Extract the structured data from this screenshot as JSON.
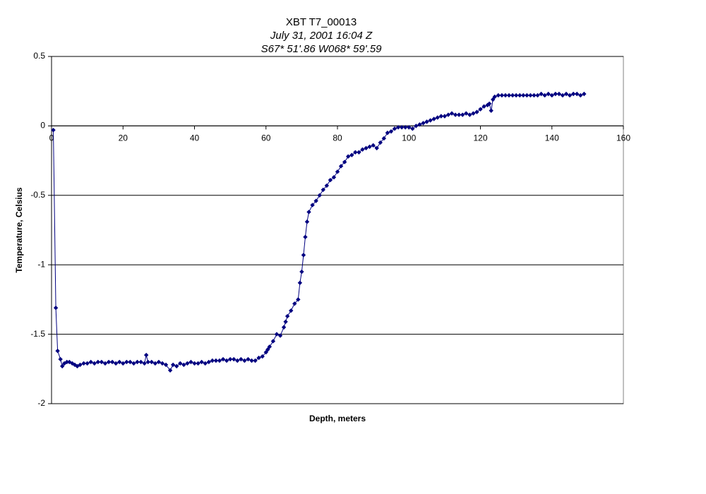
{
  "chart_data": {
    "type": "scatter",
    "title": "XBT T7_00013",
    "subtitle": "July 31, 2001  16:04 Z",
    "subtitle2": "S67* 51'.86  W068* 59'.59",
    "x_label": "Depth, meters",
    "y_label": "Temperature, Celsius",
    "color": "#000080",
    "grid": true,
    "xlim": [
      0,
      160
    ],
    "xticks": [
      0,
      20,
      40,
      60,
      80,
      100,
      120,
      140,
      160
    ],
    "ylim": [
      -2,
      0.5
    ],
    "yticks": [
      -2,
      -1.5,
      -1,
      -0.5,
      0,
      0.5
    ],
    "x": [
      0.5,
      1.2,
      1.7,
      2.5,
      3,
      3.6,
      4.3,
      5,
      5.8,
      6.5,
      7.2,
      8,
      9,
      10,
      11,
      12,
      13,
      14,
      15,
      16,
      17,
      18,
      19,
      20,
      21,
      22,
      23,
      24,
      25,
      26,
      26.5,
      27,
      28,
      29,
      30,
      31,
      32,
      33.2,
      34,
      35,
      36,
      37,
      38,
      39,
      40,
      41,
      42,
      43,
      44,
      45,
      46,
      47,
      48,
      49,
      50,
      51,
      52,
      53,
      54,
      55,
      56,
      57,
      58,
      59,
      60,
      60.5,
      61,
      62,
      63,
      64,
      65,
      65.5,
      66,
      67,
      68,
      69,
      69.5,
      70,
      70.5,
      71,
      71.5,
      72,
      73,
      74,
      75,
      76,
      77,
      78,
      79,
      80,
      81,
      82,
      83,
      84,
      85,
      86,
      87,
      88,
      89,
      90,
      91,
      92,
      93,
      94,
      95,
      96,
      97,
      98,
      99,
      100,
      101,
      102,
      103,
      104,
      105,
      106,
      107,
      108,
      109,
      110,
      111,
      112,
      113,
      114,
      115,
      116,
      117,
      118,
      119,
      120,
      121,
      122,
      122.5,
      123,
      123.5,
      124,
      125,
      126,
      127,
      128,
      129,
      130,
      131,
      132,
      133,
      134,
      135,
      136,
      137,
      138,
      139,
      140,
      141,
      142,
      143,
      144,
      145,
      146,
      147,
      148,
      149
    ],
    "y": [
      -0.03,
      -1.31,
      -1.62,
      -1.68,
      -1.73,
      -1.71,
      -1.7,
      -1.7,
      -1.71,
      -1.72,
      -1.73,
      -1.72,
      -1.71,
      -1.71,
      -1.7,
      -1.71,
      -1.7,
      -1.7,
      -1.71,
      -1.7,
      -1.7,
      -1.71,
      -1.7,
      -1.71,
      -1.7,
      -1.7,
      -1.71,
      -1.7,
      -1.7,
      -1.71,
      -1.65,
      -1.7,
      -1.7,
      -1.71,
      -1.7,
      -1.71,
      -1.72,
      -1.76,
      -1.72,
      -1.73,
      -1.71,
      -1.72,
      -1.71,
      -1.7,
      -1.71,
      -1.71,
      -1.7,
      -1.71,
      -1.7,
      -1.69,
      -1.69,
      -1.69,
      -1.68,
      -1.69,
      -1.68,
      -1.68,
      -1.69,
      -1.68,
      -1.69,
      -1.68,
      -1.69,
      -1.69,
      -1.67,
      -1.66,
      -1.63,
      -1.61,
      -1.59,
      -1.55,
      -1.5,
      -1.51,
      -1.45,
      -1.41,
      -1.37,
      -1.33,
      -1.28,
      -1.25,
      -1.13,
      -1.05,
      -0.93,
      -0.8,
      -0.69,
      -0.62,
      -0.57,
      -0.54,
      -0.5,
      -0.46,
      -0.43,
      -0.39,
      -0.37,
      -0.33,
      -0.29,
      -0.26,
      -0.22,
      -0.21,
      -0.19,
      -0.19,
      -0.17,
      -0.16,
      -0.15,
      -0.14,
      -0.16,
      -0.12,
      -0.09,
      -0.05,
      -0.04,
      -0.02,
      -0.01,
      -0.01,
      -0.01,
      -0.01,
      -0.02,
      0,
      0.01,
      0.02,
      0.03,
      0.04,
      0.05,
      0.06,
      0.07,
      0.07,
      0.08,
      0.09,
      0.08,
      0.08,
      0.08,
      0.09,
      0.08,
      0.09,
      0.1,
      0.12,
      0.14,
      0.15,
      0.16,
      0.11,
      0.19,
      0.21,
      0.22,
      0.22,
      0.22,
      0.22,
      0.22,
      0.22,
      0.22,
      0.22,
      0.22,
      0.22,
      0.22,
      0.22,
      0.23,
      0.22,
      0.23,
      0.22,
      0.23,
      0.23,
      0.22,
      0.23,
      0.22,
      0.23,
      0.23,
      0.22,
      0.23
    ]
  }
}
